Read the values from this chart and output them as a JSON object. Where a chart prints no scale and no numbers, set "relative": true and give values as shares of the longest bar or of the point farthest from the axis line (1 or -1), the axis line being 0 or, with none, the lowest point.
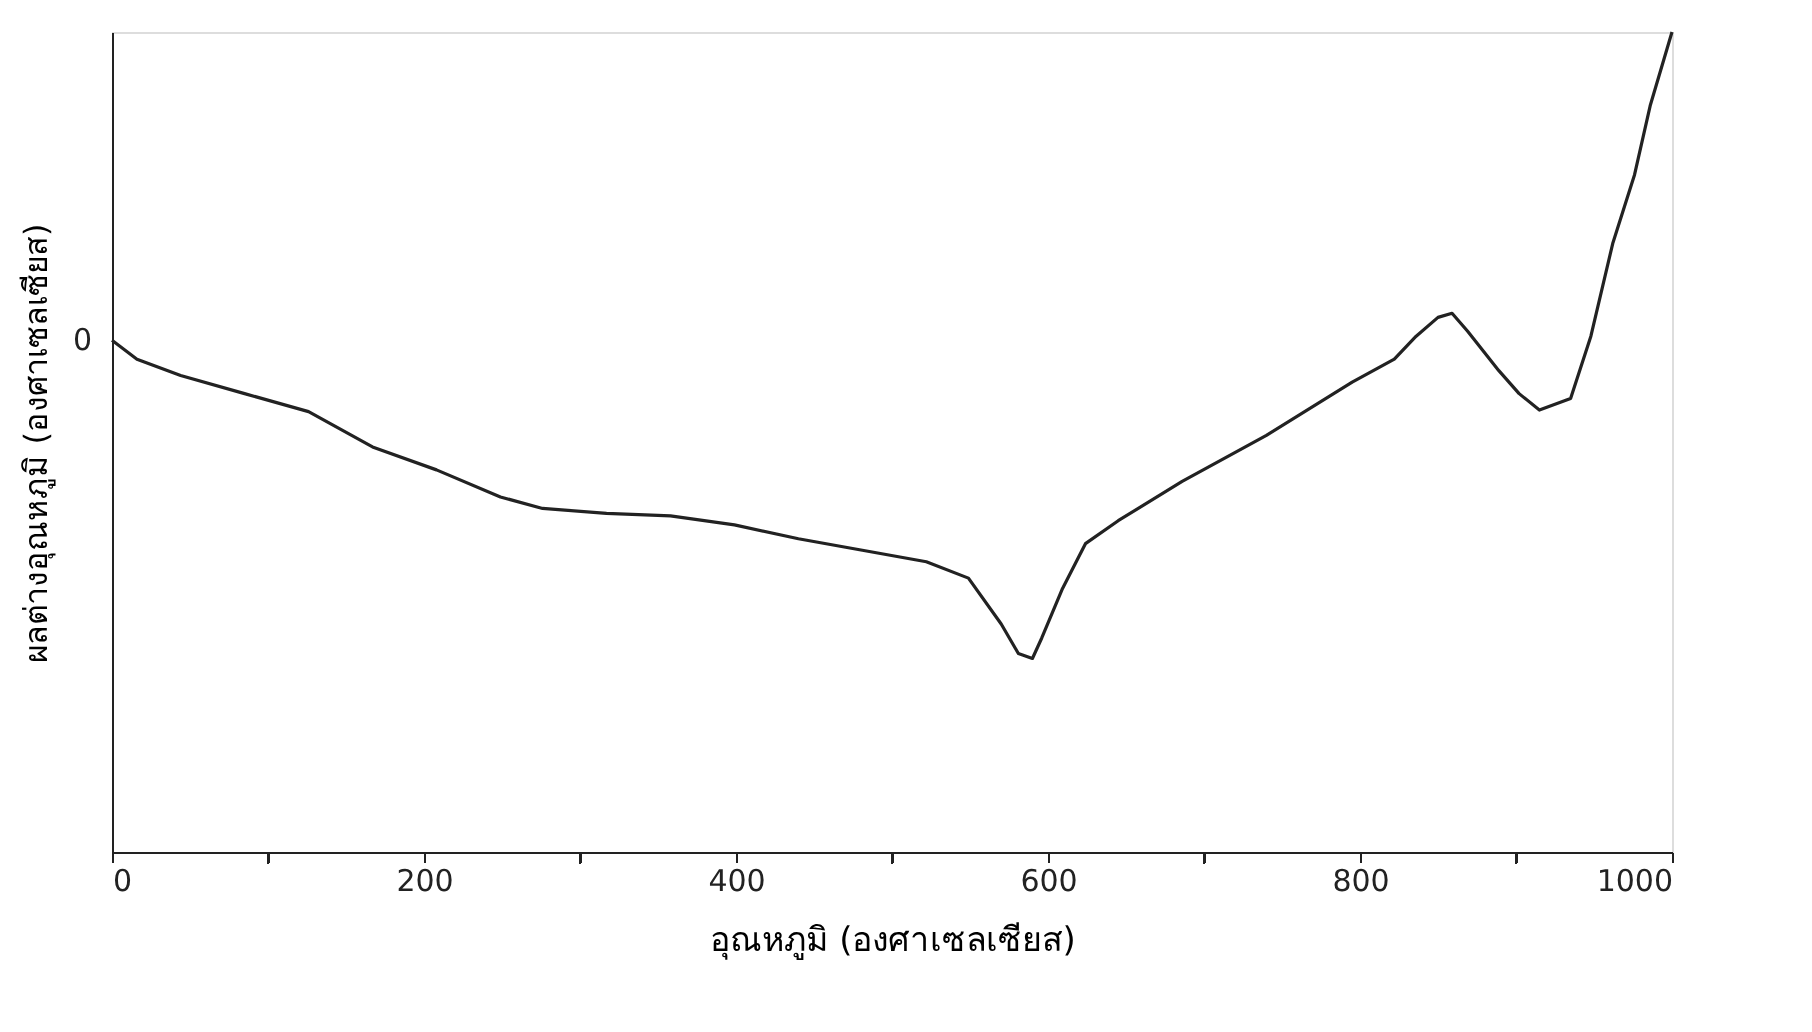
{
  "chart_data": {
    "type": "line",
    "relative": true,
    "xlabel": "อุณหภูมิ (องศาเซลเซียส)",
    "ylabel": "ผลต่างอุณหภูมิ (องศาเซลเซียส)",
    "x": [
      0,
      16,
      44,
      85,
      126,
      167,
      208,
      249,
      276,
      317,
      358,
      399,
      440,
      481,
      522,
      549,
      570,
      581,
      590,
      596,
      609,
      624,
      645,
      686,
      740,
      795,
      822,
      836,
      850,
      859,
      869,
      889,
      902,
      915,
      935,
      948,
      962,
      976,
      986,
      1000
    ],
    "series": [
      {
        "color": "#222222",
        "values": [
          0.624,
          0.601,
          0.581,
          0.559,
          0.537,
          0.494,
          0.466,
          0.433,
          0.419,
          0.413,
          0.41,
          0.399,
          0.382,
          0.368,
          0.354,
          0.334,
          0.278,
          0.242,
          0.236,
          0.261,
          0.32,
          0.376,
          0.404,
          0.452,
          0.508,
          0.573,
          0.601,
          0.629,
          0.652,
          0.657,
          0.635,
          0.587,
          0.559,
          0.539,
          0.553,
          0.629,
          0.742,
          0.826,
          0.91,
          1.0
        ]
      }
    ],
    "xlim": [
      0,
      1000
    ],
    "xticks": [
      0,
      {
        "value": 100,
        "label": null
      },
      200,
      {
        "value": 300,
        "label": null
      },
      400,
      {
        "value": 500,
        "label": null
      },
      600,
      {
        "value": 700,
        "label": null
      },
      800,
      {
        "value": 900,
        "label": null
      },
      1000
    ],
    "annotations": [
      {
        "text": "0",
        "x": 0,
        "y": 0.624
      }
    ],
    "grid": false,
    "marker": "none",
    "line_style": "solid"
  }
}
